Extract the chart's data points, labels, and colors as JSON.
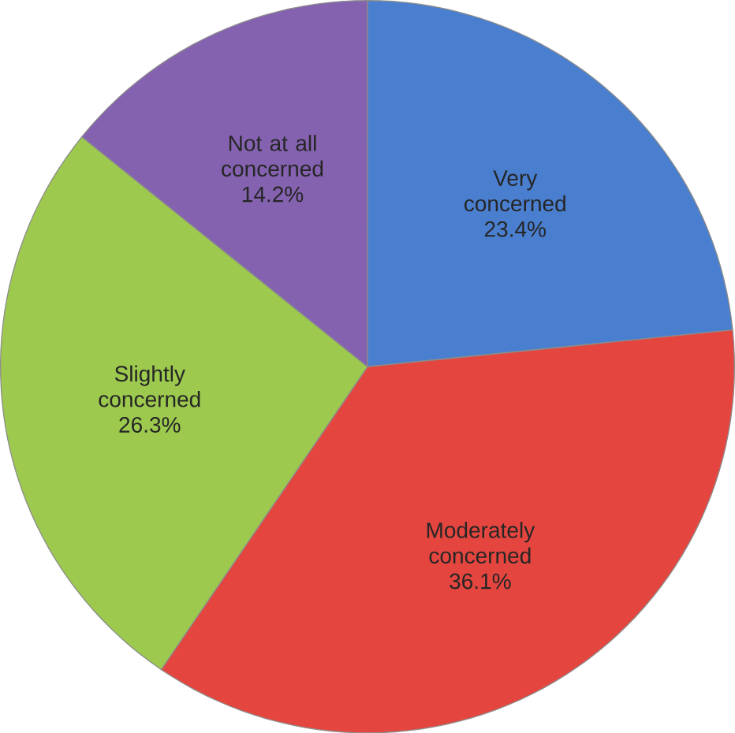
{
  "chart_data": {
    "type": "pie",
    "categories": [
      "Very concerned",
      "Moderately concerned",
      "Slightly concerned",
      "Not at all concerned"
    ],
    "values": [
      23.4,
      36.1,
      26.3,
      14.2
    ],
    "value_labels": [
      "23.4%",
      "36.1%",
      "26.3%",
      "14.2%"
    ],
    "colors": [
      "#4a7fcf",
      "#e4463f",
      "#9cc94e",
      "#8462b0"
    ]
  }
}
